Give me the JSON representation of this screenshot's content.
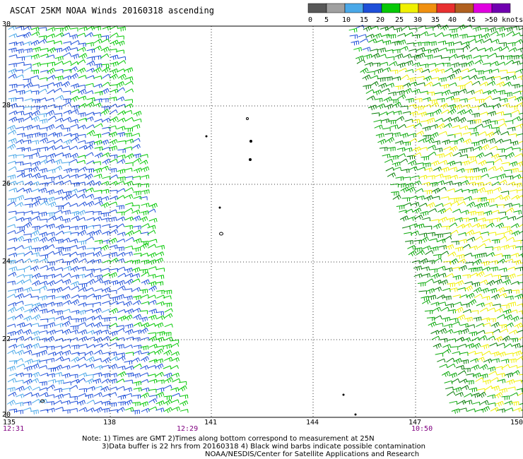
{
  "title": "ASCAT 25KM NOAA Winds 20160318 ascending",
  "legend": {
    "labels": [
      "0",
      "5",
      "10",
      "15",
      "20",
      "25",
      "30",
      "35",
      "40",
      "45",
      ">50 knots"
    ],
    "colors": [
      "#585858",
      "#a0a0a0",
      "#4aa8e8",
      "#1e4fd8",
      "#06c806",
      "#f0f000",
      "#f09010",
      "#e83030",
      "#b06020",
      "#e000e0",
      "#7000b0"
    ]
  },
  "axes": {
    "lon_ticks": [
      "135",
      "138",
      "141",
      "144",
      "147",
      "150"
    ],
    "lat_ticks": [
      "30",
      "28",
      "26",
      "24",
      "22",
      "20"
    ]
  },
  "times": [
    "12:31",
    "12:29",
    "10:50"
  ],
  "notes": [
    "Note: 1) Times are GMT 2)Times along bottom correspond to measurement at 25N",
    "3)Data buffer is 22 hrs from 20160318 4) Black wind barbs indicate possible contamination",
    "NOAA/NESDIS/Center for Satellite Applications and Research"
  ],
  "colors": {
    "time": "#800080",
    "grid": "#000000"
  }
}
